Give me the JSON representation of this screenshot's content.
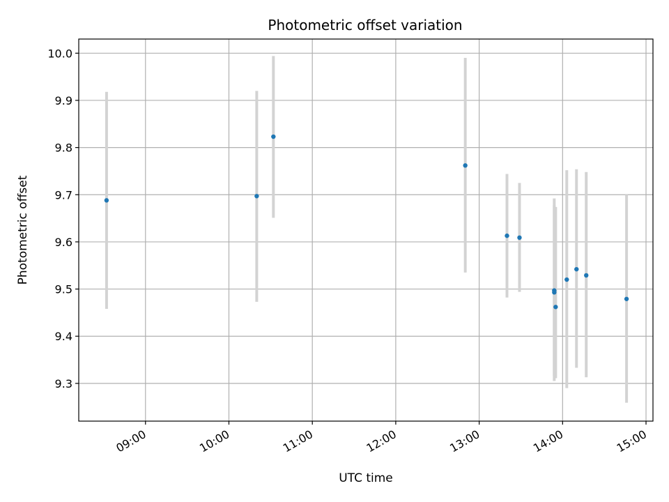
{
  "chart_data": {
    "type": "scatter",
    "title": "Photometric offset variation",
    "xlabel": "UTC time",
    "ylabel": "Photometric offset",
    "x_is_time": true,
    "xlim": [
      "08:12",
      "15:05"
    ],
    "ylim": [
      9.22,
      10.03
    ],
    "x_ticks": [
      "09:00",
      "10:00",
      "11:00",
      "12:00",
      "13:00",
      "14:00",
      "15:00"
    ],
    "y_ticks": [
      9.3,
      9.4,
      9.5,
      9.6,
      9.7,
      9.8,
      9.9,
      10.0
    ],
    "y_tick_labels": [
      "9.3",
      "9.4",
      "9.5",
      "9.6",
      "9.7",
      "9.8",
      "9.9",
      "10.0"
    ],
    "grid": true,
    "colors": {
      "point": "#1f77b4",
      "errorbar": "#d3d3d3",
      "grid": "#b0b0b0",
      "axes": "#000000"
    },
    "series": [
      {
        "x": [
          "08:32",
          "10:20",
          "10:32",
          "12:50",
          "13:20",
          "13:29",
          "13:54",
          "13:54",
          "13:55",
          "14:03",
          "14:10",
          "14:17",
          "14:46"
        ],
        "y": [
          9.688,
          9.697,
          9.823,
          9.762,
          9.613,
          9.609,
          9.497,
          9.493,
          9.462,
          9.52,
          9.542,
          9.529,
          9.479
        ],
        "yerr_low": [
          9.458,
          9.473,
          9.651,
          9.535,
          9.482,
          9.494,
          9.316,
          9.305,
          9.311,
          9.29,
          9.333,
          9.313,
          9.259
        ],
        "yerr_high": [
          9.918,
          9.92,
          9.994,
          9.99,
          9.744,
          9.725,
          9.678,
          9.692,
          9.674,
          9.752,
          9.754,
          9.748,
          9.7
        ]
      }
    ]
  }
}
